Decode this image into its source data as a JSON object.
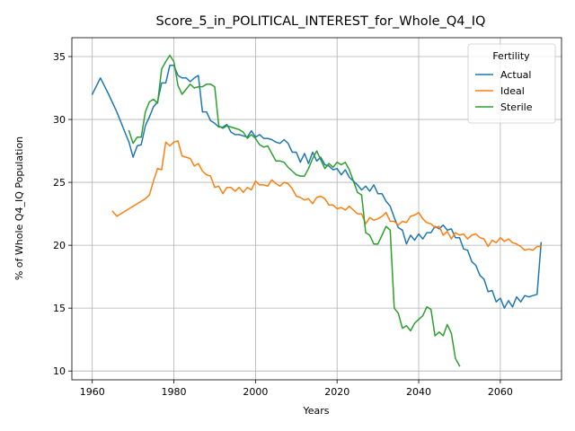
{
  "chart_data": {
    "type": "line",
    "title": "Score_5_in_POLITICAL_INTEREST_for_Whole_Q4_IQ",
    "xlabel": "Years",
    "ylabel": "% of Whole Q4_IQ Population",
    "xlim": [
      1955,
      2075
    ],
    "ylim": [
      9.3,
      36.5
    ],
    "x_ticks": [
      1960,
      1980,
      2000,
      2020,
      2040,
      2060
    ],
    "y_ticks": [
      10,
      15,
      20,
      25,
      30,
      35
    ],
    "grid": true,
    "legend": {
      "title": "Fertility",
      "placement": "top-right"
    },
    "series": [
      {
        "name": "Actual",
        "color": "#1f77b4",
        "points": [
          [
            1960,
            32.0
          ],
          [
            1962,
            33.3
          ],
          [
            1964,
            32.0
          ],
          [
            1966,
            30.6
          ],
          [
            1968,
            29.0
          ],
          [
            1969,
            28.2
          ],
          [
            1970,
            27.0
          ],
          [
            1971,
            27.9
          ],
          [
            1972,
            28.0
          ],
          [
            1973,
            29.5
          ],
          [
            1974,
            30.2
          ],
          [
            1975,
            31.0
          ],
          [
            1976,
            31.4
          ],
          [
            1977,
            32.9
          ],
          [
            1978,
            32.9
          ],
          [
            1979,
            34.3
          ],
          [
            1980,
            34.3
          ],
          [
            1981,
            33.5
          ],
          [
            1982,
            33.3
          ],
          [
            1983,
            33.3
          ],
          [
            1984,
            33.0
          ],
          [
            1985,
            33.3
          ],
          [
            1986,
            33.5
          ],
          [
            1987,
            30.6
          ],
          [
            1988,
            30.6
          ],
          [
            1989,
            29.9
          ],
          [
            1990,
            29.7
          ],
          [
            1991,
            29.4
          ],
          [
            1992,
            29.4
          ],
          [
            1993,
            29.6
          ],
          [
            1994,
            29.0
          ],
          [
            1995,
            28.8
          ],
          [
            1996,
            28.8
          ],
          [
            1997,
            28.7
          ],
          [
            1998,
            28.6
          ],
          [
            1999,
            29.1
          ],
          [
            2000,
            28.6
          ],
          [
            2001,
            28.8
          ],
          [
            2002,
            28.5
          ],
          [
            2003,
            28.5
          ],
          [
            2004,
            28.4
          ],
          [
            2005,
            28.2
          ],
          [
            2006,
            28.1
          ],
          [
            2007,
            28.4
          ],
          [
            2008,
            28.1
          ],
          [
            2009,
            27.4
          ],
          [
            2010,
            27.4
          ],
          [
            2011,
            26.6
          ],
          [
            2012,
            27.3
          ],
          [
            2013,
            26.5
          ],
          [
            2014,
            27.4
          ],
          [
            2015,
            26.7
          ],
          [
            2016,
            27.0
          ],
          [
            2017,
            26.4
          ],
          [
            2018,
            26.3
          ],
          [
            2019,
            26.0
          ],
          [
            2020,
            26.1
          ],
          [
            2021,
            25.6
          ],
          [
            2022,
            26.0
          ],
          [
            2023,
            25.4
          ],
          [
            2024,
            25.1
          ],
          [
            2025,
            24.8
          ],
          [
            2026,
            24.4
          ],
          [
            2027,
            24.7
          ],
          [
            2028,
            24.3
          ],
          [
            2029,
            24.8
          ],
          [
            2030,
            24.1
          ],
          [
            2031,
            24.1
          ],
          [
            2032,
            23.5
          ],
          [
            2033,
            23.1
          ],
          [
            2034,
            22.2
          ],
          [
            2035,
            21.4
          ],
          [
            2036,
            21.2
          ],
          [
            2037,
            20.1
          ],
          [
            2038,
            20.8
          ],
          [
            2039,
            20.4
          ],
          [
            2040,
            20.9
          ],
          [
            2041,
            20.5
          ],
          [
            2042,
            21.0
          ],
          [
            2043,
            21.0
          ],
          [
            2044,
            21.5
          ],
          [
            2045,
            21.3
          ],
          [
            2046,
            21.6
          ],
          [
            2047,
            21.2
          ],
          [
            2048,
            21.3
          ],
          [
            2049,
            20.6
          ],
          [
            2050,
            20.6
          ],
          [
            2051,
            19.7
          ],
          [
            2052,
            19.6
          ],
          [
            2053,
            18.7
          ],
          [
            2054,
            18.4
          ],
          [
            2055,
            17.6
          ],
          [
            2056,
            17.3
          ],
          [
            2057,
            16.3
          ],
          [
            2058,
            16.4
          ],
          [
            2059,
            15.5
          ],
          [
            2060,
            15.8
          ],
          [
            2061,
            15.0
          ],
          [
            2062,
            15.6
          ],
          [
            2063,
            15.1
          ],
          [
            2064,
            15.9
          ],
          [
            2065,
            15.5
          ],
          [
            2066,
            16.0
          ],
          [
            2067,
            15.9
          ],
          [
            2068,
            16.0
          ],
          [
            2069,
            16.1
          ],
          [
            2070,
            20.2
          ]
        ]
      },
      {
        "name": "Ideal",
        "color": "#ff7f0e",
        "points": [
          [
            1965,
            22.7
          ],
          [
            1966,
            22.3
          ],
          [
            1967,
            22.5
          ],
          [
            1968,
            22.7
          ],
          [
            1969,
            22.9
          ],
          [
            1970,
            23.1
          ],
          [
            1971,
            23.3
          ],
          [
            1972,
            23.5
          ],
          [
            1973,
            23.7
          ],
          [
            1974,
            24.0
          ],
          [
            1975,
            25.1
          ],
          [
            1976,
            26.1
          ],
          [
            1977,
            26.0
          ],
          [
            1978,
            28.2
          ],
          [
            1979,
            27.9
          ],
          [
            1980,
            28.2
          ],
          [
            1981,
            28.3
          ],
          [
            1982,
            27.1
          ],
          [
            1983,
            27.0
          ],
          [
            1984,
            26.9
          ],
          [
            1985,
            26.3
          ],
          [
            1986,
            26.5
          ],
          [
            1987,
            25.9
          ],
          [
            1988,
            25.6
          ],
          [
            1989,
            25.5
          ],
          [
            1990,
            24.6
          ],
          [
            1991,
            24.7
          ],
          [
            1992,
            24.1
          ],
          [
            1993,
            24.6
          ],
          [
            1994,
            24.6
          ],
          [
            1995,
            24.3
          ],
          [
            1996,
            24.6
          ],
          [
            1997,
            24.2
          ],
          [
            1998,
            24.6
          ],
          [
            1999,
            24.4
          ],
          [
            2000,
            25.1
          ],
          [
            2001,
            24.8
          ],
          [
            2002,
            24.8
          ],
          [
            2003,
            24.7
          ],
          [
            2004,
            25.2
          ],
          [
            2005,
            24.9
          ],
          [
            2006,
            24.7
          ],
          [
            2007,
            25.0
          ],
          [
            2008,
            24.9
          ],
          [
            2009,
            24.5
          ],
          [
            2010,
            23.9
          ],
          [
            2011,
            23.8
          ],
          [
            2012,
            23.6
          ],
          [
            2013,
            23.7
          ],
          [
            2014,
            23.3
          ],
          [
            2015,
            23.8
          ],
          [
            2016,
            23.9
          ],
          [
            2017,
            23.7
          ],
          [
            2018,
            23.2
          ],
          [
            2019,
            23.2
          ],
          [
            2020,
            22.9
          ],
          [
            2021,
            23.0
          ],
          [
            2022,
            22.8
          ],
          [
            2023,
            23.1
          ],
          [
            2024,
            22.8
          ],
          [
            2025,
            22.5
          ],
          [
            2026,
            22.5
          ],
          [
            2027,
            21.7
          ],
          [
            2028,
            22.2
          ],
          [
            2029,
            22.0
          ],
          [
            2030,
            22.1
          ],
          [
            2031,
            22.3
          ],
          [
            2032,
            22.6
          ],
          [
            2033,
            21.9
          ],
          [
            2034,
            21.9
          ],
          [
            2035,
            21.6
          ],
          [
            2036,
            21.9
          ],
          [
            2037,
            21.8
          ],
          [
            2038,
            22.3
          ],
          [
            2039,
            22.4
          ],
          [
            2040,
            22.6
          ],
          [
            2041,
            22.1
          ],
          [
            2042,
            21.8
          ],
          [
            2043,
            21.7
          ],
          [
            2044,
            21.4
          ],
          [
            2045,
            21.5
          ],
          [
            2046,
            20.8
          ],
          [
            2047,
            21.1
          ],
          [
            2048,
            20.5
          ],
          [
            2049,
            21.0
          ],
          [
            2050,
            20.8
          ],
          [
            2051,
            20.9
          ],
          [
            2052,
            20.5
          ],
          [
            2053,
            20.8
          ],
          [
            2054,
            20.9
          ],
          [
            2055,
            20.6
          ],
          [
            2056,
            20.5
          ],
          [
            2057,
            19.9
          ],
          [
            2058,
            20.4
          ],
          [
            2059,
            20.2
          ],
          [
            2060,
            20.6
          ],
          [
            2061,
            20.3
          ],
          [
            2062,
            20.5
          ],
          [
            2063,
            20.2
          ],
          [
            2064,
            20.1
          ],
          [
            2065,
            19.9
          ],
          [
            2066,
            19.6
          ],
          [
            2067,
            19.7
          ],
          [
            2068,
            19.6
          ],
          [
            2069,
            19.9
          ],
          [
            2070,
            19.9
          ]
        ]
      },
      {
        "name": "Sterile",
        "color": "#2ca02c",
        "points": [
          [
            1969,
            29.1
          ],
          [
            1970,
            28.1
          ],
          [
            1971,
            28.6
          ],
          [
            1972,
            28.6
          ],
          [
            1973,
            30.6
          ],
          [
            1974,
            31.4
          ],
          [
            1975,
            31.6
          ],
          [
            1976,
            31.3
          ],
          [
            1977,
            34.0
          ],
          [
            1978,
            34.6
          ],
          [
            1979,
            35.1
          ],
          [
            1980,
            34.6
          ],
          [
            1981,
            32.7
          ],
          [
            1982,
            32.0
          ],
          [
            1983,
            32.4
          ],
          [
            1984,
            32.8
          ],
          [
            1985,
            32.5
          ],
          [
            1986,
            32.6
          ],
          [
            1987,
            32.6
          ],
          [
            1988,
            32.8
          ],
          [
            1989,
            32.8
          ],
          [
            1990,
            32.6
          ],
          [
            1991,
            29.5
          ],
          [
            1992,
            29.3
          ],
          [
            1993,
            29.5
          ],
          [
            1994,
            29.4
          ],
          [
            1995,
            29.3
          ],
          [
            1996,
            29.2
          ],
          [
            1997,
            29.0
          ],
          [
            1998,
            28.5
          ],
          [
            1999,
            28.8
          ],
          [
            2000,
            28.5
          ],
          [
            2001,
            28.0
          ],
          [
            2002,
            27.8
          ],
          [
            2003,
            27.9
          ],
          [
            2004,
            27.3
          ],
          [
            2005,
            26.7
          ],
          [
            2006,
            26.7
          ],
          [
            2007,
            26.6
          ],
          [
            2008,
            26.2
          ],
          [
            2009,
            25.9
          ],
          [
            2010,
            25.6
          ],
          [
            2011,
            25.5
          ],
          [
            2012,
            25.5
          ],
          [
            2013,
            26.1
          ],
          [
            2014,
            26.9
          ],
          [
            2015,
            27.5
          ],
          [
            2016,
            26.8
          ],
          [
            2017,
            26.1
          ],
          [
            2018,
            26.5
          ],
          [
            2019,
            26.2
          ],
          [
            2020,
            26.6
          ],
          [
            2021,
            26.4
          ],
          [
            2022,
            26.6
          ],
          [
            2023,
            26.0
          ],
          [
            2024,
            25.1
          ],
          [
            2025,
            24.2
          ],
          [
            2026,
            24.0
          ],
          [
            2027,
            21.0
          ],
          [
            2028,
            20.8
          ],
          [
            2029,
            20.1
          ],
          [
            2030,
            20.1
          ],
          [
            2031,
            20.8
          ],
          [
            2032,
            21.5
          ],
          [
            2033,
            21.2
          ],
          [
            2034,
            15.0
          ],
          [
            2035,
            14.6
          ],
          [
            2036,
            13.4
          ],
          [
            2037,
            13.6
          ],
          [
            2038,
            13.2
          ],
          [
            2039,
            13.8
          ],
          [
            2040,
            14.1
          ],
          [
            2041,
            14.4
          ],
          [
            2042,
            15.1
          ],
          [
            2043,
            14.9
          ],
          [
            2044,
            12.8
          ],
          [
            2045,
            13.1
          ],
          [
            2046,
            12.8
          ],
          [
            2047,
            13.7
          ],
          [
            2048,
            13.0
          ],
          [
            2049,
            11.0
          ],
          [
            2050,
            10.4
          ]
        ]
      }
    ]
  }
}
